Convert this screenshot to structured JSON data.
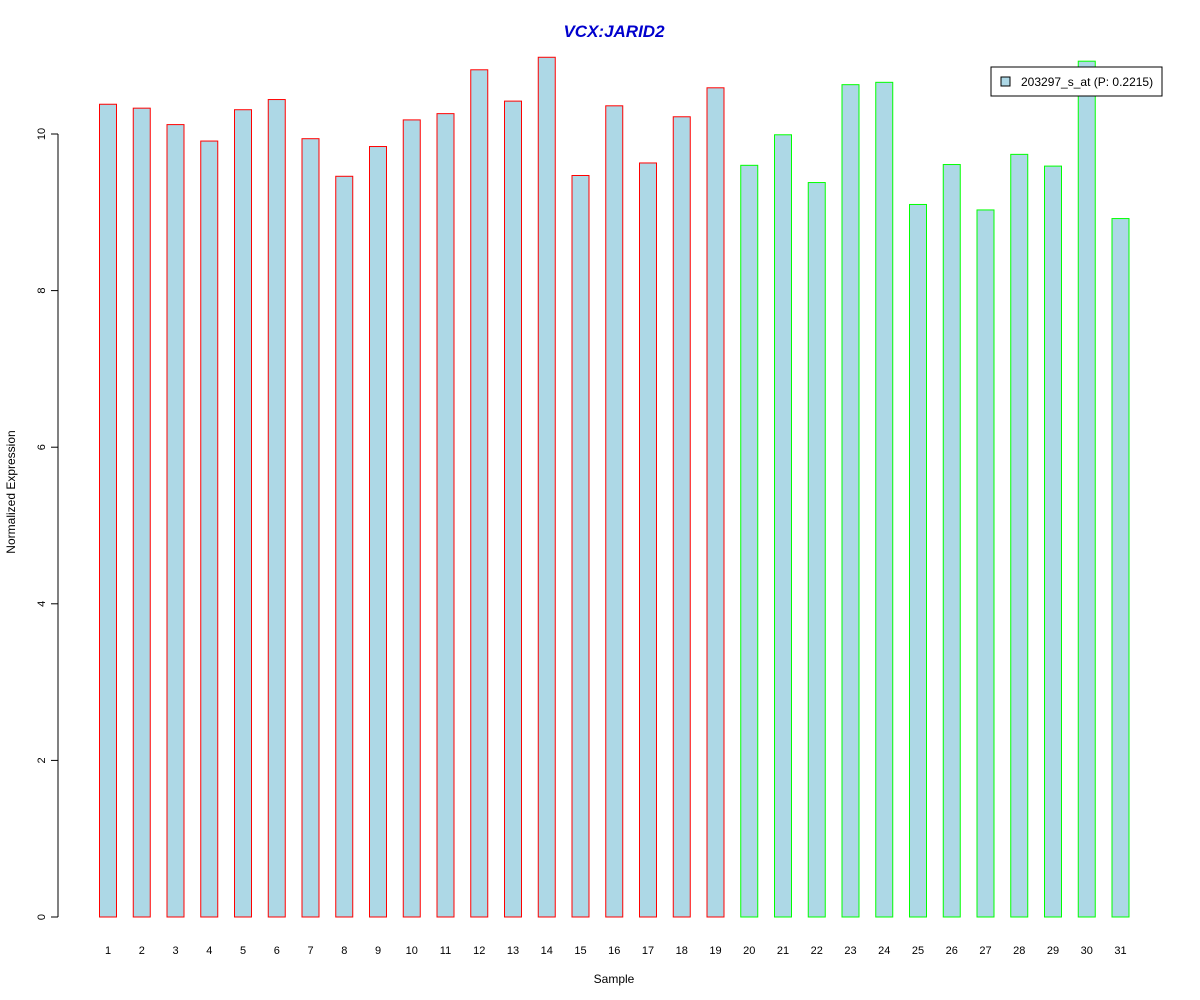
{
  "chart_data": {
    "type": "bar",
    "title": "VCX:JARID2",
    "xlabel": "Sample",
    "ylabel": "Normalized Expression",
    "ylim": [
      0,
      11
    ],
    "yticks": [
      0,
      2,
      4,
      6,
      8,
      10
    ],
    "categories": [
      "1",
      "2",
      "3",
      "4",
      "5",
      "6",
      "7",
      "8",
      "9",
      "10",
      "11",
      "12",
      "13",
      "14",
      "15",
      "16",
      "17",
      "18",
      "19",
      "20",
      "21",
      "22",
      "23",
      "24",
      "25",
      "26",
      "27",
      "28",
      "29",
      "30",
      "31"
    ],
    "values": [
      10.38,
      10.33,
      10.12,
      9.91,
      10.31,
      10.44,
      9.94,
      9.46,
      9.84,
      10.18,
      10.26,
      10.82,
      10.42,
      10.98,
      9.47,
      10.36,
      9.63,
      10.22,
      10.59,
      9.6,
      9.99,
      9.38,
      10.63,
      10.66,
      9.1,
      9.61,
      9.03,
      9.74,
      9.59,
      10.93,
      8.92
    ],
    "groups": [
      1,
      1,
      1,
      1,
      1,
      1,
      1,
      1,
      1,
      1,
      1,
      1,
      1,
      1,
      1,
      1,
      1,
      1,
      1,
      2,
      2,
      2,
      2,
      2,
      2,
      2,
      2,
      2,
      2,
      2,
      2
    ],
    "legend": {
      "placement": "top-right",
      "entries": [
        "203297_s_at (P: 0.2215)"
      ]
    },
    "colors": {
      "bar_fill": "#ADD8E6",
      "group1_border": "#FF0000",
      "group2_border": "#00FF00",
      "title": "#0000CD"
    },
    "grid": false
  }
}
